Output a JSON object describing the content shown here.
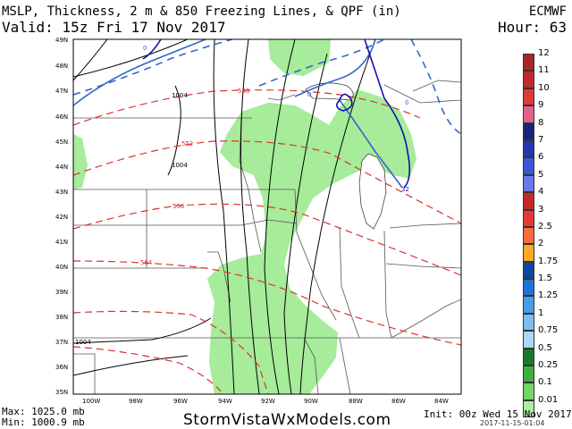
{
  "header": {
    "title": "MSLP, Thickness, 2 m & 850 Freezing Lines, & QPF (in)",
    "valid": "Valid: 15z Fri 17 Nov 2017",
    "model": "ECMWF",
    "hour": "Hour: 63"
  },
  "map": {
    "lat_labels": [
      "49N",
      "48N",
      "47N",
      "46N",
      "45N",
      "44N",
      "43N",
      "42N",
      "41N",
      "40N",
      "39N",
      "38N",
      "37N",
      "36N",
      "35N"
    ],
    "lon_labels": [
      "100W",
      "98W",
      "96W",
      "94W",
      "92W",
      "90W",
      "88W",
      "86W",
      "84W"
    ],
    "thickness_labels": [
      "546",
      "552",
      "558",
      "564"
    ],
    "isobar_labels": [
      "1004",
      "1004",
      "1004"
    ],
    "freezing_labels": [
      "0",
      "0",
      "0",
      "32"
    ],
    "colors": {
      "qpf_fill": "#a6ec9a",
      "thickness": "#e03030",
      "isobar": "#000000",
      "freezing_2m": "#3366cc",
      "freezing_850": "#1111aa",
      "state_lines": "#555555"
    }
  },
  "legend": {
    "items": [
      {
        "label": "12",
        "color": "#a52727"
      },
      {
        "label": "11",
        "color": "#c42a2a"
      },
      {
        "label": "10",
        "color": "#dc3b3b"
      },
      {
        "label": "9",
        "color": "#e0628b"
      },
      {
        "label": "8",
        "color": "#1a237e"
      },
      {
        "label": "7",
        "color": "#2535b0"
      },
      {
        "label": "6",
        "color": "#3b57d6"
      },
      {
        "label": "5",
        "color": "#6a78e8"
      },
      {
        "label": "4",
        "color": "#c62828"
      },
      {
        "label": "3",
        "color": "#e53935"
      },
      {
        "label": "2.5",
        "color": "#ff6a3c"
      },
      {
        "label": "2",
        "color": "#ffa726"
      },
      {
        "label": "1.75",
        "color": "#0d47a1"
      },
      {
        "label": "1.5",
        "color": "#1e74d6"
      },
      {
        "label": "1.25",
        "color": "#4a9be8"
      },
      {
        "label": "1",
        "color": "#7cbcf0"
      },
      {
        "label": "0.75",
        "color": "#aad6f7"
      },
      {
        "label": "0.5",
        "color": "#1b7a2a"
      },
      {
        "label": "0.25",
        "color": "#3fae3f"
      },
      {
        "label": "0.1",
        "color": "#74d36a"
      },
      {
        "label": "0.01",
        "color": "#aaf0a0"
      }
    ]
  },
  "footer": {
    "max": "Max: 1025.0 mb",
    "min": "Min: 1000.9 mb",
    "brand": "StormVistaWxModels.com",
    "init": "Init: 00z Wed 15 Nov 2017",
    "stamp": "2017-11-15-01:04"
  }
}
